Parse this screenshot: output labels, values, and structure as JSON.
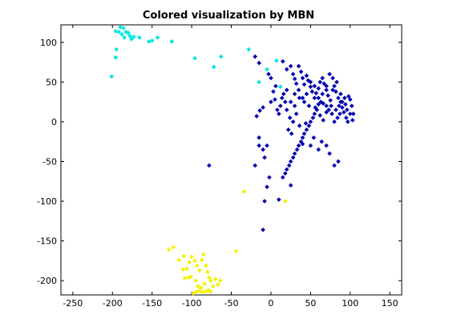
{
  "colors": {
    "background": "#ffffff",
    "axes": "#000000",
    "cyan": "#00e5e5",
    "blue": "#0000b0",
    "yellow": "#f2f200"
  },
  "chart_data": {
    "type": "scatter",
    "title": "Colored visualization by MBN",
    "xlabel": "",
    "ylabel": "",
    "xlim": [
      -265,
      165
    ],
    "ylim": [
      -218,
      122
    ],
    "xticks": [
      -250,
      -200,
      -150,
      -100,
      -50,
      0,
      50,
      100,
      150
    ],
    "yticks": [
      -200,
      -150,
      -100,
      -50,
      0,
      50,
      100
    ],
    "grid": false,
    "legend": "none",
    "marker": "diamond",
    "series": [
      {
        "color": "#00e5e5",
        "points": [
          [
            -190,
            119
          ],
          [
            -186,
            118
          ],
          [
            -192,
            113
          ],
          [
            -188,
            110
          ],
          [
            -183,
            113
          ],
          [
            -180,
            112
          ],
          [
            -178,
            108
          ],
          [
            -176,
            104
          ],
          [
            -173,
            107
          ],
          [
            -196,
            114
          ],
          [
            -185,
            106
          ],
          [
            -166,
            106
          ],
          [
            -154,
            101
          ],
          [
            -150,
            102
          ],
          [
            -143,
            106
          ],
          [
            -125,
            101
          ],
          [
            -195,
            91
          ],
          [
            -196,
            81
          ],
          [
            -201,
            57
          ],
          [
            -96,
            80
          ],
          [
            -72,
            69
          ],
          [
            -63,
            82
          ],
          [
            -28,
            91
          ],
          [
            -5,
            66
          ],
          [
            -15,
            50
          ],
          [
            7,
            77
          ],
          [
            12,
            44
          ]
        ]
      },
      {
        "color": "#0000b0",
        "points": [
          [
            -20,
            82
          ],
          [
            -15,
            74
          ],
          [
            -3,
            60
          ],
          [
            0,
            55
          ],
          [
            3,
            38
          ],
          [
            5,
            28
          ],
          [
            8,
            15
          ],
          [
            -10,
            18
          ],
          [
            -18,
            7
          ],
          [
            -14,
            14
          ],
          [
            0,
            25
          ],
          [
            6,
            45
          ],
          [
            15,
            76
          ],
          [
            20,
            66
          ],
          [
            25,
            70
          ],
          [
            28,
            60
          ],
          [
            30,
            54
          ],
          [
            32,
            48
          ],
          [
            35,
            70
          ],
          [
            38,
            63
          ],
          [
            40,
            55
          ],
          [
            42,
            47
          ],
          [
            45,
            58
          ],
          [
            47,
            52
          ],
          [
            50,
            44
          ],
          [
            52,
            38
          ],
          [
            55,
            30
          ],
          [
            57,
            36
          ],
          [
            60,
            42
          ],
          [
            62,
            50
          ],
          [
            65,
            55
          ],
          [
            67,
            48
          ],
          [
            70,
            40
          ],
          [
            72,
            33
          ],
          [
            75,
            27
          ],
          [
            78,
            40
          ],
          [
            80,
            45
          ],
          [
            82,
            38
          ],
          [
            85,
            30
          ],
          [
            88,
            25
          ],
          [
            90,
            18
          ],
          [
            92,
            12
          ],
          [
            95,
            5
          ],
          [
            97,
            0
          ],
          [
            100,
            28
          ],
          [
            102,
            20
          ],
          [
            104,
            10
          ],
          [
            103,
            2
          ],
          [
            98,
            32
          ],
          [
            93,
            30
          ],
          [
            87,
            10
          ],
          [
            84,
            5
          ],
          [
            80,
            0
          ],
          [
            77,
            10
          ],
          [
            73,
            15
          ],
          [
            70,
            20
          ],
          [
            66,
            23
          ],
          [
            63,
            25
          ],
          [
            60,
            22
          ],
          [
            58,
            15
          ],
          [
            55,
            10
          ],
          [
            53,
            5
          ],
          [
            50,
            0
          ],
          [
            48,
            -5
          ],
          [
            45,
            -10
          ],
          [
            42,
            -15
          ],
          [
            40,
            -20
          ],
          [
            38,
            -25
          ],
          [
            35,
            -30
          ],
          [
            33,
            -35
          ],
          [
            30,
            -40
          ],
          [
            28,
            -45
          ],
          [
            25,
            -50
          ],
          [
            23,
            -55
          ],
          [
            20,
            -60
          ],
          [
            18,
            -65
          ],
          [
            15,
            -70
          ],
          [
            30,
            20
          ],
          [
            32,
            10
          ],
          [
            28,
            0
          ],
          [
            24,
            5
          ],
          [
            20,
            15
          ],
          [
            18,
            25
          ],
          [
            16,
            35
          ],
          [
            14,
            30
          ],
          [
            12,
            20
          ],
          [
            10,
            10
          ],
          [
            22,
            -10
          ],
          [
            26,
            -15
          ],
          [
            36,
            -5
          ],
          [
            44,
            -2
          ],
          [
            54,
            -20
          ],
          [
            64,
            -25
          ],
          [
            70,
            -30
          ],
          [
            74,
            -40
          ],
          [
            80,
            -55
          ],
          [
            85,
            -50
          ],
          [
            60,
            -35
          ],
          [
            50,
            -30
          ],
          [
            40,
            -28
          ],
          [
            36,
            30
          ],
          [
            42,
            25
          ],
          [
            48,
            20
          ],
          [
            56,
            18
          ],
          [
            62,
            8
          ],
          [
            66,
            2
          ],
          [
            70,
            12
          ],
          [
            76,
            20
          ],
          [
            82,
            15
          ],
          [
            86,
            20
          ],
          [
            90,
            25
          ],
          [
            94,
            22
          ],
          [
            96,
            15
          ],
          [
            100,
            10
          ],
          [
            88,
            35
          ],
          [
            83,
            50
          ],
          [
            78,
            55
          ],
          [
            74,
            60
          ],
          [
            70,
            45
          ],
          [
            65,
            35
          ],
          [
            60,
            30
          ],
          [
            55,
            45
          ],
          [
            50,
            50
          ],
          [
            45,
            35
          ],
          [
            40,
            30
          ],
          [
            35,
            40
          ],
          [
            30,
            35
          ],
          [
            25,
            25
          ],
          [
            20,
            40
          ],
          [
            -5,
            -30
          ],
          [
            -15,
            -30
          ],
          [
            -10,
            -35
          ],
          [
            -8,
            -45
          ],
          [
            -2,
            -70
          ],
          [
            -5,
            -82
          ],
          [
            -8,
            -100
          ],
          [
            -10,
            -136
          ],
          [
            -78,
            -55
          ],
          [
            -20,
            -55
          ],
          [
            -15,
            -20
          ],
          [
            25,
            -80
          ],
          [
            10,
            -98
          ]
        ]
      },
      {
        "color": "#f2f200",
        "points": [
          [
            -34,
            -88
          ],
          [
            18,
            -100
          ],
          [
            -44,
            -163
          ],
          [
            -129,
            -161
          ],
          [
            -123,
            -158
          ],
          [
            -116,
            -174
          ],
          [
            -111,
            -186
          ],
          [
            -106,
            -185
          ],
          [
            -103,
            -177
          ],
          [
            -100,
            -170
          ],
          [
            -96,
            -175
          ],
          [
            -93,
            -181
          ],
          [
            -90,
            -187
          ],
          [
            -87,
            -174
          ],
          [
            -85,
            -167
          ],
          [
            -82,
            -181
          ],
          [
            -80,
            -189
          ],
          [
            -78,
            -196
          ],
          [
            -76,
            -200
          ],
          [
            -95,
            -200
          ],
          [
            -92,
            -207
          ],
          [
            -90,
            -213
          ],
          [
            -88,
            -209
          ],
          [
            -86,
            -214
          ],
          [
            -84,
            -204
          ],
          [
            -82,
            -214
          ],
          [
            -79,
            -212
          ],
          [
            -76,
            -214
          ],
          [
            -73,
            -207
          ],
          [
            -70,
            -198
          ],
          [
            -67,
            -205
          ],
          [
            -64,
            -200
          ],
          [
            -94,
            -214
          ],
          [
            -98,
            -216
          ],
          [
            -101,
            -195
          ],
          [
            -104,
            -196
          ],
          [
            -109,
            -197
          ],
          [
            -110,
            -169
          ]
        ]
      }
    ]
  }
}
